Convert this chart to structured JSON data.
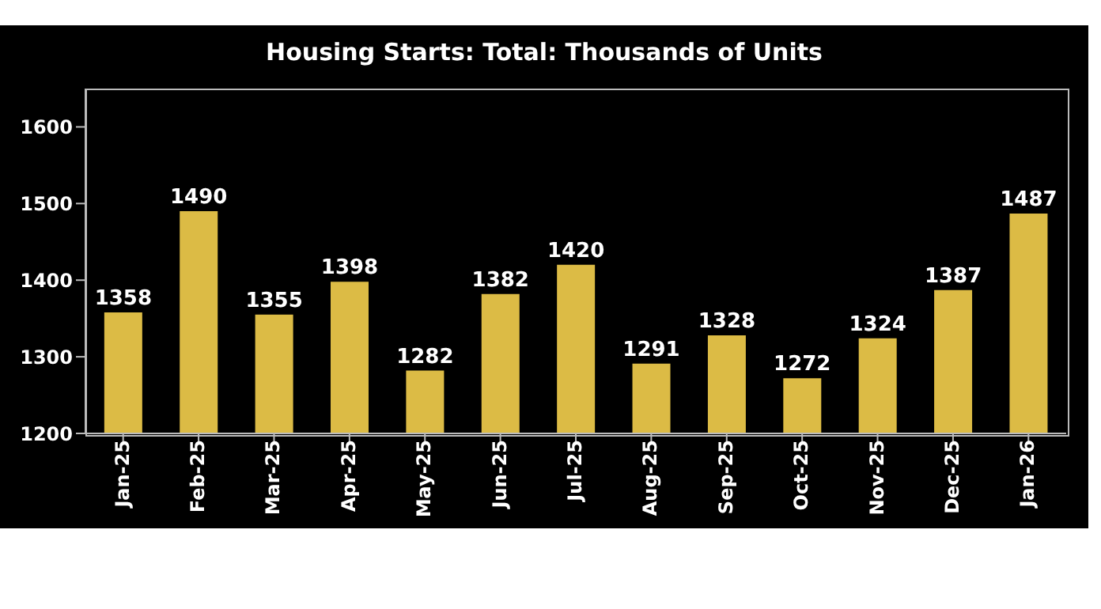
{
  "chart_data": {
    "type": "bar",
    "title": "Housing Starts: Total: Thousands of Units",
    "categories": [
      "Jan-25",
      "Feb-25",
      "Mar-25",
      "Apr-25",
      "May-25",
      "Jun-25",
      "Jul-25",
      "Aug-25",
      "Sep-25",
      "Oct-25",
      "Nov-25",
      "Dec-25",
      "Jan-26"
    ],
    "values": [
      1358,
      1490,
      1355,
      1398,
      1282,
      1382,
      1420,
      1291,
      1328,
      1272,
      1324,
      1387,
      1487
    ],
    "color": "#dcbb45",
    "ylim": [
      1200,
      1650
    ],
    "yticks": [
      1200,
      1300,
      1400,
      1500,
      1600
    ],
    "data_labels": true
  }
}
